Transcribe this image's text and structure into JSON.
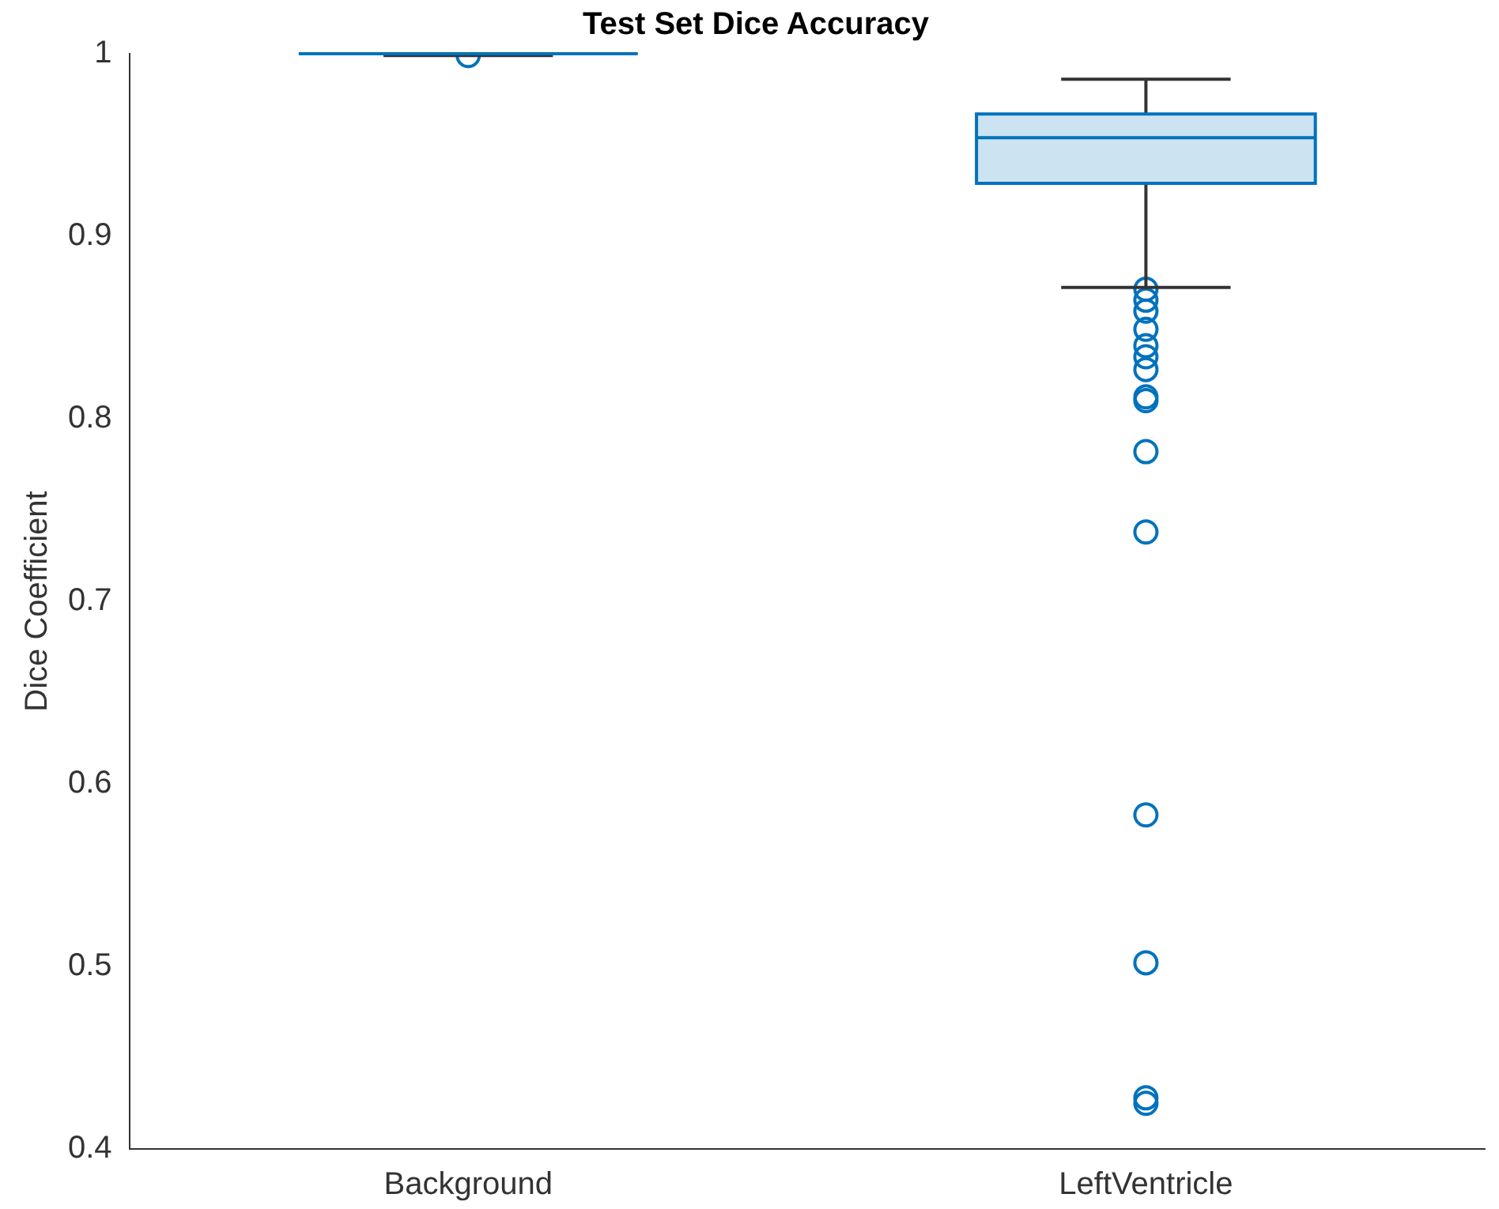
{
  "chart_data": {
    "type": "box",
    "title": "Test Set Dice Accuracy",
    "ylabel": "Dice Coefficient",
    "categories": [
      "Background",
      "LeftVentricle"
    ],
    "color": "#0072bd",
    "boxes": [
      {
        "low": 0.999,
        "q1": 1.0,
        "median": 1.0,
        "q3": 1.0,
        "high": 1.0,
        "outliers": [
          0.999
        ]
      },
      {
        "low": 0.872,
        "q1": 0.929,
        "median": 0.954,
        "q3": 0.967,
        "high": 0.986,
        "outliers": [
          0.871,
          0.865,
          0.859,
          0.849,
          0.84,
          0.834,
          0.827,
          0.812,
          0.81,
          0.782,
          0.738,
          0.583,
          0.502,
          0.428,
          0.425
        ]
      }
    ],
    "ylim": [
      0.4,
      1
    ],
    "yticks": [
      0.4,
      0.5,
      0.6,
      0.7,
      0.8,
      0.9,
      1
    ],
    "grid": false,
    "legend": false
  }
}
